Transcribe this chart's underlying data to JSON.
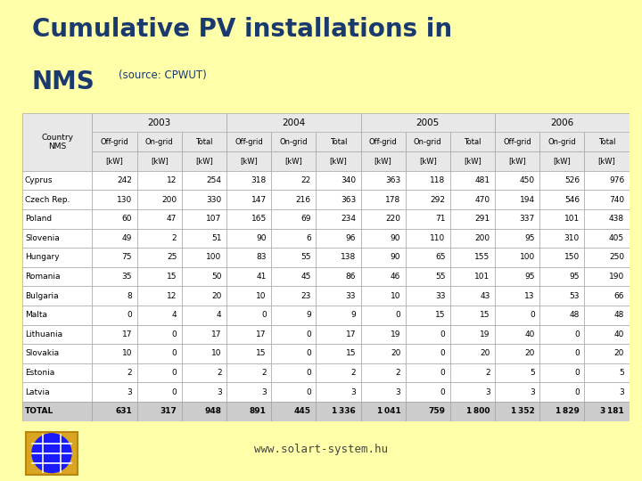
{
  "title_line1": "Cumulative PV installations in",
  "title_line2": "NMS",
  "title_source": "(source: CPWUT)",
  "website": "www.solart-system.hu",
  "bg_color": "#FFFFAA",
  "table_bg": "#FFFFFF",
  "countries": [
    "Cyprus",
    "Czech Rep.",
    "Poland",
    "Slovenia",
    "Hungary",
    "Romania",
    "Bulgaria",
    "Malta",
    "Lithuania",
    "Slovakia",
    "Estonia",
    "Latvia",
    "TOTAL"
  ],
  "data": [
    [
      242,
      12,
      254,
      318,
      22,
      340,
      363,
      118,
      481,
      450,
      526,
      976
    ],
    [
      130,
      200,
      330,
      147,
      216,
      363,
      178,
      292,
      470,
      194,
      546,
      740
    ],
    [
      60,
      47,
      107,
      165,
      69,
      234,
      220,
      71,
      291,
      337,
      101,
      438
    ],
    [
      49,
      2,
      51,
      90,
      6,
      96,
      90,
      110,
      200,
      95,
      310,
      405
    ],
    [
      75,
      25,
      100,
      83,
      55,
      138,
      90,
      65,
      155,
      100,
      150,
      250
    ],
    [
      35,
      15,
      50,
      41,
      45,
      86,
      46,
      55,
      101,
      95,
      95,
      190
    ],
    [
      8,
      12,
      20,
      10,
      23,
      33,
      10,
      33,
      43,
      13,
      53,
      66
    ],
    [
      0,
      4,
      4,
      0,
      9,
      9,
      0,
      15,
      15,
      0,
      48,
      48
    ],
    [
      17,
      0,
      17,
      17,
      0,
      17,
      19,
      0,
      19,
      40,
      0,
      40
    ],
    [
      10,
      0,
      10,
      15,
      0,
      15,
      20,
      0,
      20,
      20,
      0,
      20
    ],
    [
      2,
      0,
      2,
      2,
      0,
      2,
      2,
      0,
      2,
      5,
      0,
      5
    ],
    [
      3,
      0,
      3,
      3,
      0,
      3,
      3,
      0,
      3,
      3,
      0,
      3
    ],
    [
      631,
      317,
      948,
      891,
      445,
      1336,
      1041,
      759,
      1800,
      1352,
      1829,
      3181
    ]
  ],
  "title_color": "#1a3a6e",
  "header_bg": "#E8E8E8",
  "total_bg": "#CCCCCC",
  "red_bar_color": "#CC2200",
  "dark_red_line": "#8B0000",
  "border_color": "#999999",
  "years": [
    "2003",
    "2004",
    "2005",
    "2006"
  ],
  "sub_headers": [
    "Off-grid",
    "On-grid",
    "Total"
  ]
}
